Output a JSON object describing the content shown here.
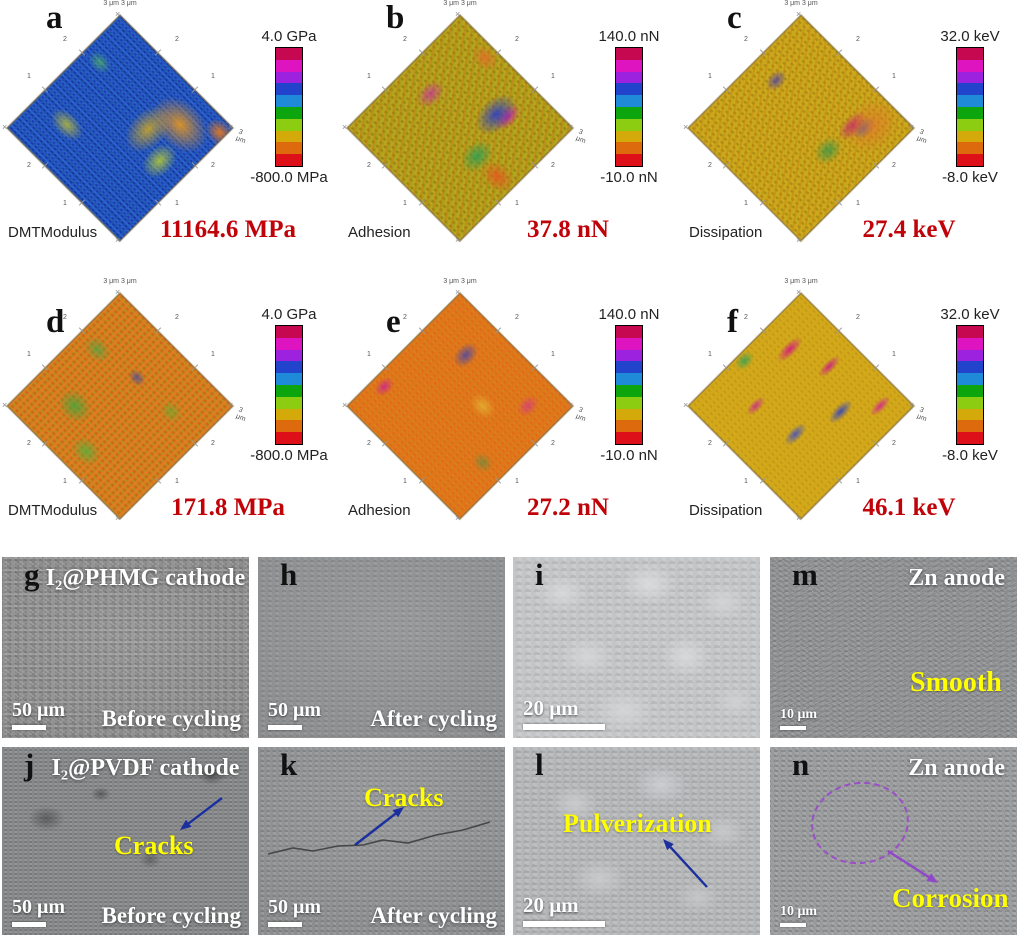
{
  "afm": {
    "axis": {
      "top_label": "3 μm 3 μm",
      "right_label": "3 μm",
      "vertex_mark": "×",
      "ticks": [
        "2",
        "1",
        "2",
        "1",
        "2",
        "1",
        "2",
        "1"
      ]
    },
    "colorbar_colors": [
      "#c50850",
      "#dd14c0",
      "#9c22e0",
      "#2244cc",
      "#1f8ad8",
      "#0da50d",
      "#8ccc11",
      "#d4a90a",
      "#dd6a0d",
      "#dd0f18"
    ],
    "panels": [
      {
        "letter": "a",
        "modality": "DMTModulus",
        "value": "11164.6 MPa",
        "scale_max": "4.0 GPa",
        "scale_min": "-800.0 MPa"
      },
      {
        "letter": "b",
        "modality": "Adhesion",
        "value": "37.8 nN",
        "scale_max": "140.0 nN",
        "scale_min": "-10.0 nN"
      },
      {
        "letter": "c",
        "modality": "Dissipation",
        "value": "27.4 keV",
        "scale_max": "32.0 keV",
        "scale_min": "-8.0 keV"
      },
      {
        "letter": "d",
        "modality": "DMTModulus",
        "value": "171.8 MPa",
        "scale_max": "4.0 GPa",
        "scale_min": "-800.0 MPa"
      },
      {
        "letter": "e",
        "modality": "Adhesion",
        "value": "27.2 nN",
        "scale_max": "140.0 nN",
        "scale_min": "-10.0 nN"
      },
      {
        "letter": "f",
        "modality": "Dissipation",
        "value": "46.1 keV",
        "scale_max": "32.0 keV",
        "scale_min": "-8.0 keV"
      }
    ]
  },
  "sem": {
    "panels": [
      {
        "letter": "g",
        "title": "I₂@PHMG cathode",
        "scalebar": "50 μm",
        "caption": "Before cycling"
      },
      {
        "letter": "h",
        "scalebar": "50 μm",
        "caption": "After cycling"
      },
      {
        "letter": "i",
        "scalebar": "20 μm"
      },
      {
        "letter": "m",
        "title": "Zn anode",
        "annotation": "Smooth",
        "scalebar": "10 μm"
      },
      {
        "letter": "j",
        "title": "I₂@PVDF cathode",
        "annotation": "Cracks",
        "scalebar": "50 μm",
        "caption": "Before cycling"
      },
      {
        "letter": "k",
        "annotation": "Cracks",
        "scalebar": "50 μm",
        "caption": "After cycling"
      },
      {
        "letter": "l",
        "annotation": "Pulverization",
        "scalebar": "20 μm"
      },
      {
        "letter": "n",
        "title": "Zn anode",
        "annotation": "Corrosion",
        "scalebar": "10 μm"
      }
    ]
  },
  "colors": {
    "value_red": "#c00309",
    "annotation_yellow": "#ffff00",
    "arrow_blue": "#1b2f9e",
    "arrow_purple": "#9048c8",
    "scalebar_white": "#ffffff"
  }
}
